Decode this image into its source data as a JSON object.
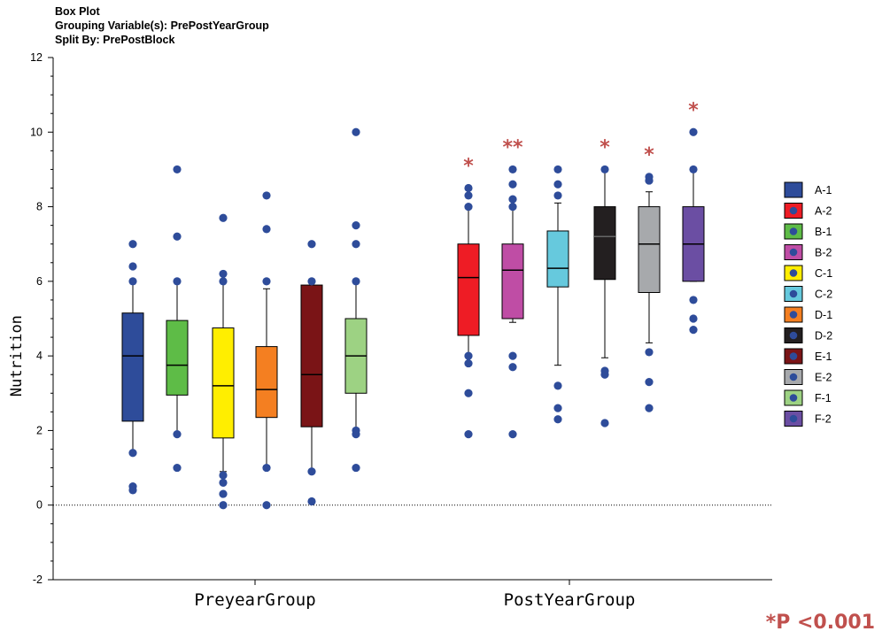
{
  "titles": {
    "line1": "Box Plot",
    "line2": "Grouping Variable(s): PrePostYearGroup",
    "line3": "Split By: PrePostBlock"
  },
  "note": "*P <0.001",
  "chart_data": {
    "type": "box",
    "ylabel": "Nutrition",
    "ylim": [
      -2,
      12
    ],
    "yticks": [
      "-2",
      "0",
      "2",
      "4",
      "6",
      "8",
      "10",
      "12"
    ],
    "reference_line": 0,
    "groups": [
      "PreyearGroup",
      "PostYearGroup"
    ],
    "outlier_color": "#2e4c9a",
    "significance_color": "#c0504d",
    "boxes": [
      {
        "name": "A-1",
        "group": "PreyearGroup",
        "color": "#2e4c9a",
        "q1": 2.25,
        "median": 4.0,
        "q3": 5.15,
        "lower": 1.4,
        "upper": 6.0,
        "outliers": [
          7.0,
          6.4,
          6.0,
          1.4,
          0.5,
          0.4
        ],
        "sig": ""
      },
      {
        "name": "B-1",
        "group": "PreyearGroup",
        "color": "#5ebc47",
        "q1": 2.95,
        "median": 3.75,
        "q3": 4.95,
        "lower": 1.9,
        "upper": 6.0,
        "outliers": [
          9.0,
          7.2,
          6.0,
          1.9,
          1.0
        ],
        "sig": ""
      },
      {
        "name": "C-1",
        "group": "PreyearGroup",
        "color": "#ffee00",
        "q1": 1.8,
        "median": 3.2,
        "q3": 4.75,
        "lower": 0.9,
        "upper": 6.0,
        "outliers": [
          7.7,
          6.2,
          6.0,
          0.8,
          0.6,
          0.3,
          0.0
        ],
        "sig": ""
      },
      {
        "name": "D-1",
        "group": "PreyearGroup",
        "color": "#f47f21",
        "q1": 2.35,
        "median": 3.1,
        "q3": 4.25,
        "lower": 1.05,
        "upper": 5.8,
        "outliers": [
          8.3,
          7.4,
          6.0,
          1.0,
          0.0
        ],
        "sig": ""
      },
      {
        "name": "E-1",
        "group": "PreyearGroup",
        "color": "#7a1416",
        "q1": 2.1,
        "median": 3.5,
        "q3": 5.9,
        "lower": 0.9,
        "upper": 6.0,
        "outliers": [
          7.0,
          6.0,
          0.9,
          0.1
        ],
        "sig": ""
      },
      {
        "name": "F-1",
        "group": "PreyearGroup",
        "color": "#9dd283",
        "q1": 3.0,
        "median": 4.0,
        "q3": 5.0,
        "lower": 2.0,
        "upper": 6.0,
        "outliers": [
          10.0,
          7.5,
          7.0,
          6.0,
          2.0,
          1.9,
          1.0
        ],
        "sig": ""
      },
      {
        "name": "A-2",
        "group": "PostYearGroup",
        "color": "#ee1c25",
        "q1": 4.55,
        "median": 6.1,
        "q3": 7.0,
        "lower": 4.0,
        "upper": 8.0,
        "outliers": [
          8.5,
          8.3,
          8.0,
          4.0,
          3.8,
          3.0,
          1.9
        ],
        "sig": "*"
      },
      {
        "name": "B-2",
        "group": "PostYearGroup",
        "color": "#bf4da5",
        "q1": 5.0,
        "median": 6.3,
        "q3": 7.0,
        "lower": 4.9,
        "upper": 8.0,
        "outliers": [
          9.0,
          8.6,
          8.2,
          8.0,
          4.0,
          3.7,
          1.9
        ],
        "sig": "**"
      },
      {
        "name": "C-2",
        "group": "PostYearGroup",
        "color": "#66c9dd",
        "q1": 5.85,
        "median": 6.35,
        "q3": 7.35,
        "lower": 3.75,
        "upper": 8.1,
        "outliers": [
          9.0,
          8.6,
          8.3,
          3.2,
          2.6,
          2.3
        ],
        "sig": ""
      },
      {
        "name": "D-2",
        "group": "PostYearGroup",
        "color": "#231f20",
        "q1": 6.05,
        "median": 7.2,
        "q3": 8.0,
        "lower": 3.95,
        "upper": 9.0,
        "outliers": [
          9.0,
          3.6,
          3.5,
          2.2
        ],
        "sig": "*"
      },
      {
        "name": "E-2",
        "group": "PostYearGroup",
        "color": "#a7a9ac",
        "q1": 5.7,
        "median": 7.0,
        "q3": 8.0,
        "lower": 4.35,
        "upper": 8.4,
        "outliers": [
          8.8,
          8.7,
          4.1,
          3.3,
          2.6
        ],
        "sig": "*"
      },
      {
        "name": "F-2",
        "group": "PostYearGroup",
        "color": "#6b4ea3",
        "q1": 6.0,
        "median": 7.0,
        "q3": 8.0,
        "lower": 6.0,
        "upper": 9.0,
        "outliers": [
          10.0,
          9.0,
          5.5,
          5.0,
          4.7
        ],
        "sig": "*"
      }
    ],
    "legend": {
      "position": "right",
      "entries": [
        "A-1",
        "A-2",
        "B-1",
        "B-2",
        "C-1",
        "C-2",
        "D-1",
        "D-2",
        "E-1",
        "E-2",
        "F-1",
        "F-2"
      ]
    }
  }
}
